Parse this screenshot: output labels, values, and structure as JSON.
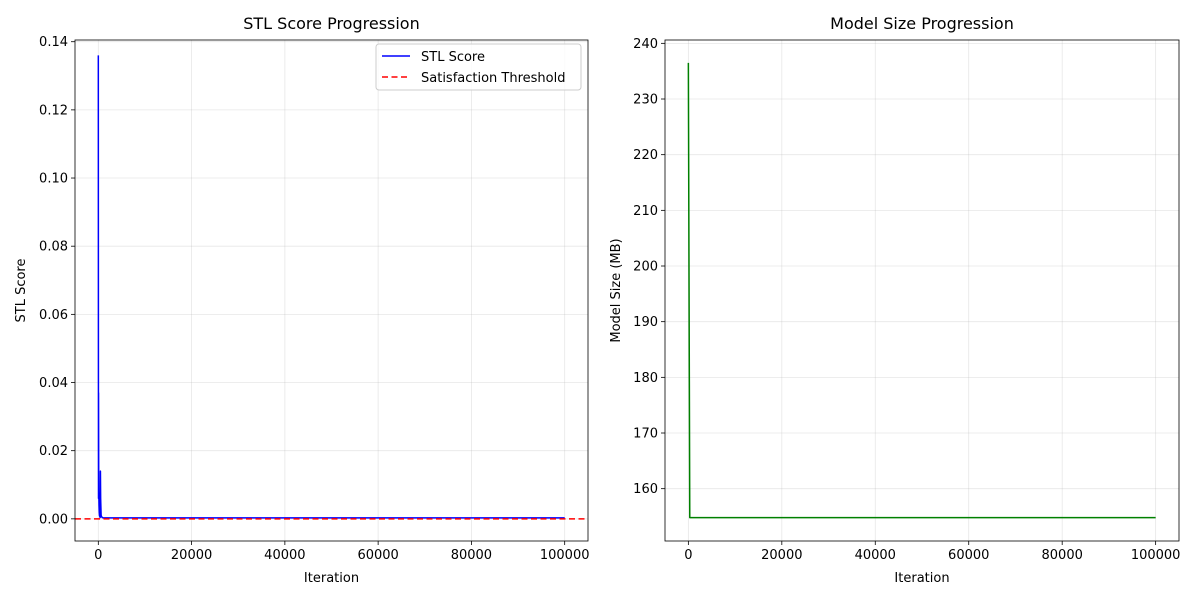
{
  "chart_data": [
    {
      "type": "line",
      "title": "STL Score Progression",
      "xlabel": "Iteration",
      "ylabel": "STL Score",
      "xlim": [
        -5000,
        105000
      ],
      "ylim": [
        -0.0065,
        0.1405
      ],
      "xticks": [
        0,
        20000,
        40000,
        60000,
        80000,
        100000
      ],
      "xtick_labels": [
        "0",
        "20000",
        "40000",
        "60000",
        "80000",
        "100000"
      ],
      "yticks": [
        0.0,
        0.02,
        0.04,
        0.06,
        0.08,
        0.1,
        0.12,
        0.14
      ],
      "ytick_labels": [
        "0.00",
        "0.02",
        "0.04",
        "0.06",
        "0.08",
        "0.10",
        "0.12",
        "0.14"
      ],
      "grid": true,
      "legend_position": "top-right",
      "series": [
        {
          "name": "STL Score",
          "color": "#0000ff",
          "style": "solid",
          "x": [
            0,
            10,
            20,
            30,
            40,
            50,
            60,
            80,
            100,
            150,
            200,
            250,
            300,
            350,
            400,
            450,
            500,
            600,
            800,
            1000,
            5000,
            20000,
            50000,
            80000,
            100000
          ],
          "y": [
            0.136,
            0.09,
            0.05,
            0.02,
            0.006,
            0.037,
            0.028,
            0.015,
            0.008,
            0.004,
            0.002,
            0.001,
            0.0008,
            0.0005,
            0.0004,
            0.014,
            0.006,
            0.001,
            0.0004,
            0.0003,
            0.0003,
            0.0003,
            0.0003,
            0.0003,
            0.0003
          ]
        },
        {
          "name": "Satisfaction Threshold",
          "color": "#ff0000",
          "style": "dashed",
          "hline": 0.0
        }
      ]
    },
    {
      "type": "line",
      "title": "Model Size Progression",
      "xlabel": "Iteration",
      "ylabel": "Model Size (MB)",
      "xlim": [
        -5000,
        105000
      ],
      "ylim": [
        150.6,
        240.6
      ],
      "xticks": [
        0,
        20000,
        40000,
        60000,
        80000,
        100000
      ],
      "xtick_labels": [
        "0",
        "20000",
        "40000",
        "60000",
        "80000",
        "100000"
      ],
      "yticks": [
        160,
        170,
        180,
        190,
        200,
        210,
        220,
        230,
        240
      ],
      "ytick_labels": [
        "160",
        "170",
        "180",
        "190",
        "200",
        "210",
        "220",
        "230",
        "240"
      ],
      "grid": true,
      "series": [
        {
          "name": "",
          "color": "#008000",
          "style": "solid",
          "x": [
            0,
            300,
            100000
          ],
          "y": [
            236.5,
            154.8,
            154.8
          ]
        }
      ]
    }
  ]
}
